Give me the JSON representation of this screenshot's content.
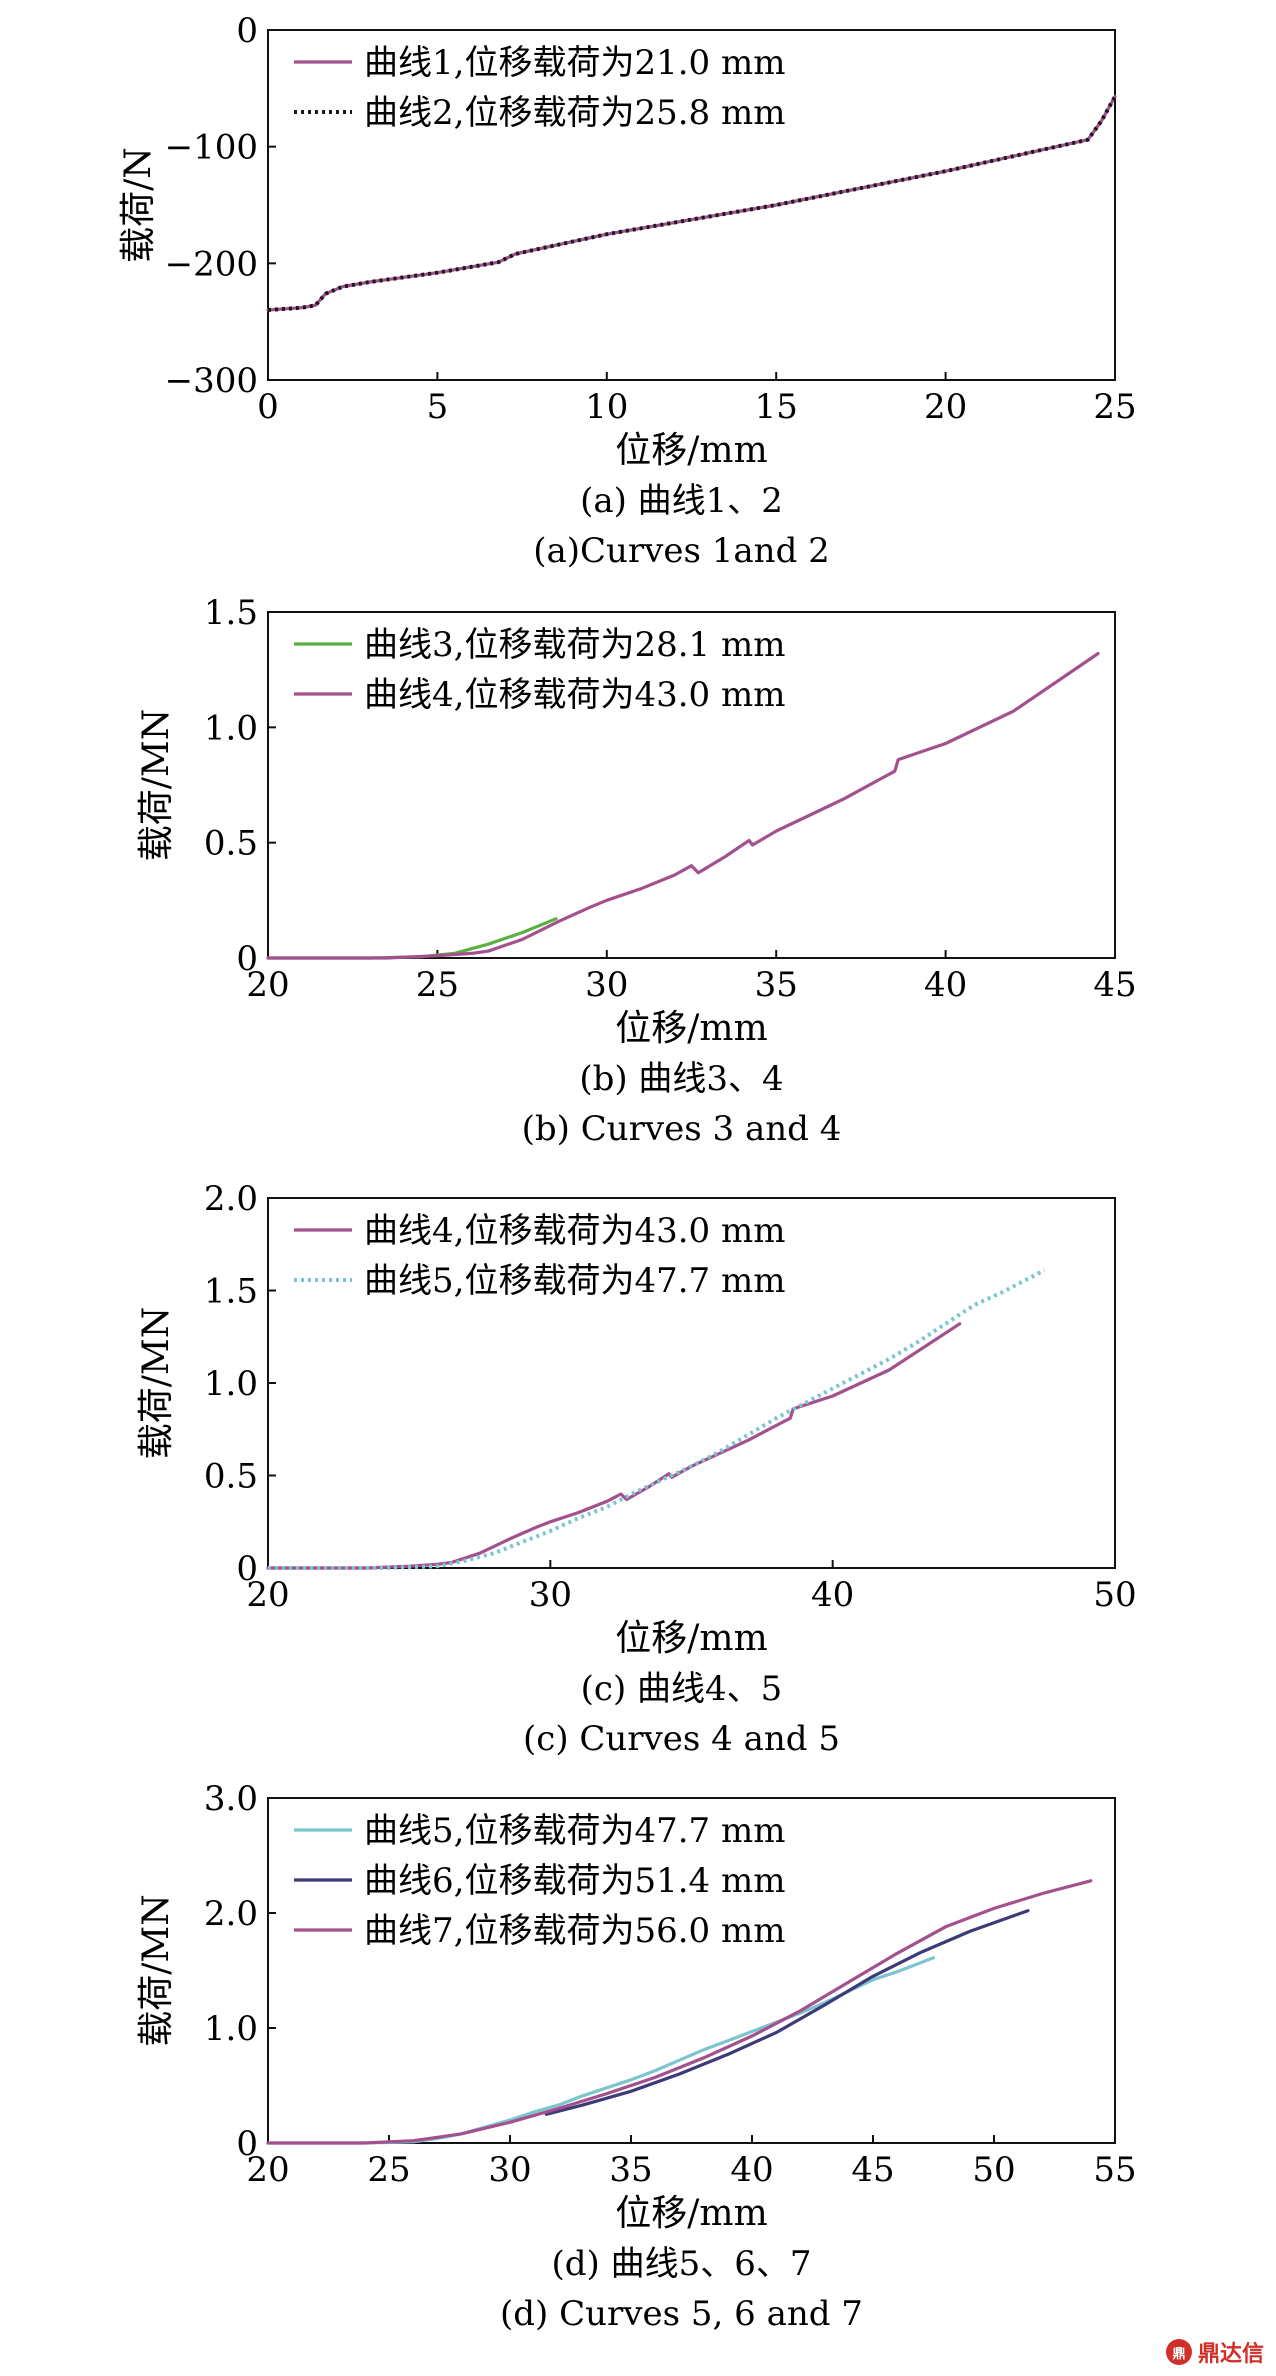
{
  "chart_data": [
    {
      "type": "line",
      "panel": "a",
      "xlabel": "位移/mm",
      "ylabel": "载荷/N",
      "xlim": [
        0,
        25
      ],
      "ylim": [
        -300,
        0
      ],
      "xticks": [
        "0",
        "5",
        "10",
        "15",
        "20",
        "25"
      ],
      "yticks": [
        "0",
        "−100",
        "−200",
        "−300"
      ],
      "caption_cn": "(a) 曲线1、2",
      "caption_en": "(a)Curves 1and 2",
      "legend_position": "top-left",
      "series": [
        {
          "name": "曲线1,位移载荷为21.0 mm",
          "color": "#a3508e",
          "style": "solid",
          "x": [
            0,
            1.0,
            1.4,
            1.7,
            2.2,
            3,
            5,
            6.8,
            7.3,
            10,
            15,
            20,
            24.2,
            24.6,
            25
          ],
          "y": [
            -240,
            -238,
            -236,
            -226,
            -220,
            -216,
            -208,
            -199,
            -192,
            -175,
            -150,
            -121,
            -94,
            -78,
            -57
          ]
        },
        {
          "name": "曲线2,位移载荷为25.8 mm",
          "color": "#1a1a1a",
          "style": "dotted",
          "x": [
            0,
            1.0,
            1.4,
            1.7,
            2.2,
            3,
            5,
            6.8,
            7.3,
            10,
            15,
            20,
            24.2,
            24.6,
            25
          ],
          "y": [
            -240,
            -238,
            -236,
            -226,
            -220,
            -216,
            -208,
            -199,
            -192,
            -175,
            -150,
            -121,
            -94,
            -78,
            -57
          ]
        }
      ]
    },
    {
      "type": "line",
      "panel": "b",
      "xlabel": "位移/mm",
      "ylabel": "载荷/MN",
      "xlim": [
        20,
        45
      ],
      "ylim": [
        0,
        1.5
      ],
      "xticks": [
        "20",
        "25",
        "30",
        "35",
        "40",
        "45"
      ],
      "yticks": [
        "0",
        "0.5",
        "1.0",
        "1.5"
      ],
      "caption_cn": "(b) 曲线3、4",
      "caption_en": "(b) Curves 3 and 4",
      "legend_position": "top-left",
      "series": [
        {
          "name": "曲线3,位移载荷为28.1 mm",
          "color": "#5ab040",
          "style": "solid",
          "x": [
            20,
            23,
            24.5,
            25.5,
            26.5,
            27.5,
            28.5
          ],
          "y": [
            0,
            0,
            0.005,
            0.02,
            0.06,
            0.11,
            0.17
          ]
        },
        {
          "name": "曲线4,位移载荷为43.0 mm",
          "color": "#a3508e",
          "style": "solid",
          "x": [
            20,
            23.5,
            25,
            26,
            26.5,
            27.5,
            28.6,
            29.5,
            30,
            31,
            32,
            32.5,
            32.7,
            33.5,
            34.2,
            34.3,
            35,
            36,
            37,
            38,
            38.5,
            38.6,
            40,
            42,
            44.5
          ],
          "y": [
            0,
            0,
            0.01,
            0.02,
            0.03,
            0.08,
            0.16,
            0.22,
            0.25,
            0.3,
            0.36,
            0.4,
            0.37,
            0.44,
            0.51,
            0.49,
            0.55,
            0.62,
            0.69,
            0.77,
            0.81,
            0.86,
            0.93,
            1.07,
            1.32
          ]
        }
      ]
    },
    {
      "type": "line",
      "panel": "c",
      "xlabel": "位移/mm",
      "ylabel": "载荷/MN",
      "xlim": [
        20,
        50
      ],
      "ylim": [
        0,
        2.0
      ],
      "xticks": [
        "20",
        "30",
        "40",
        "50"
      ],
      "yticks": [
        "0",
        "0.5",
        "1.0",
        "1.5",
        "2.0"
      ],
      "caption_cn": "(c) 曲线4、5",
      "caption_en": "(c) Curves 4 and 5",
      "legend_position": "top-left",
      "series": [
        {
          "name": "曲线4,位移载荷为43.0 mm",
          "color": "#a3508e",
          "style": "solid",
          "x": [
            20,
            23.5,
            25,
            26,
            26.5,
            27.5,
            28.6,
            29.5,
            30,
            31,
            32,
            32.5,
            32.7,
            33.5,
            34.2,
            34.3,
            35,
            36,
            37,
            38,
            38.5,
            38.6,
            40,
            42,
            44.5
          ],
          "y": [
            0,
            0,
            0.01,
            0.02,
            0.03,
            0.08,
            0.16,
            0.22,
            0.25,
            0.3,
            0.36,
            0.4,
            0.37,
            0.44,
            0.51,
            0.49,
            0.55,
            0.62,
            0.69,
            0.77,
            0.81,
            0.86,
            0.93,
            1.07,
            1.32
          ]
        },
        {
          "name": "曲线5,位移载荷为47.7 mm",
          "color": "#7cc4cf",
          "style": "dotted",
          "x": [
            20,
            24,
            26,
            27,
            28,
            29,
            30,
            31,
            32,
            33,
            34,
            35,
            36,
            37,
            38,
            39,
            40,
            41,
            42,
            43,
            44,
            45,
            46,
            47.5
          ],
          "y": [
            0,
            0,
            0.01,
            0.04,
            0.08,
            0.14,
            0.2,
            0.27,
            0.33,
            0.41,
            0.48,
            0.55,
            0.63,
            0.72,
            0.81,
            0.89,
            0.97,
            1.05,
            1.13,
            1.22,
            1.32,
            1.42,
            1.49,
            1.61
          ]
        }
      ]
    },
    {
      "type": "line",
      "panel": "d",
      "xlabel": "位移/mm",
      "ylabel": "载荷/MN",
      "xlim": [
        20,
        55
      ],
      "ylim": [
        0,
        3.0
      ],
      "xticks": [
        "20",
        "25",
        "30",
        "35",
        "40",
        "45",
        "50",
        "55"
      ],
      "yticks": [
        "0",
        "1.0",
        "2.0",
        "3.0"
      ],
      "caption_cn": "(d) 曲线5、6、7",
      "caption_en": "(d) Curves 5, 6 and 7",
      "legend_position": "top-left",
      "series": [
        {
          "name": "曲线5,位移载荷为47.7 mm",
          "color": "#7cc4cf",
          "style": "solid",
          "x": [
            20,
            24,
            26,
            27,
            28,
            29,
            30,
            31,
            32,
            33,
            34,
            35,
            36,
            37,
            38,
            39,
            40,
            41,
            42,
            43,
            44,
            45,
            46,
            47.5
          ],
          "y": [
            0,
            0,
            0.01,
            0.04,
            0.08,
            0.14,
            0.2,
            0.27,
            0.33,
            0.41,
            0.48,
            0.55,
            0.63,
            0.72,
            0.81,
            0.89,
            0.97,
            1.05,
            1.13,
            1.22,
            1.32,
            1.42,
            1.49,
            1.61
          ]
        },
        {
          "name": "曲线6,位移载荷为51.4 mm",
          "color": "#3c3a78",
          "style": "solid",
          "x": [
            31.5,
            33,
            35,
            37,
            39,
            41,
            43,
            45,
            47,
            49,
            51.4
          ],
          "y": [
            0.25,
            0.33,
            0.45,
            0.6,
            0.77,
            0.96,
            1.2,
            1.45,
            1.66,
            1.84,
            2.02
          ]
        },
        {
          "name": "曲线7,位移载荷为56.0 mm",
          "color": "#a3508e",
          "style": "solid",
          "x": [
            20,
            24,
            26,
            27,
            28,
            30,
            32,
            34,
            36,
            38,
            40,
            42,
            44,
            46,
            48,
            50,
            52,
            54
          ],
          "y": [
            0,
            0,
            0.02,
            0.05,
            0.08,
            0.18,
            0.3,
            0.43,
            0.57,
            0.74,
            0.93,
            1.15,
            1.4,
            1.65,
            1.88,
            2.04,
            2.17,
            2.28
          ]
        }
      ]
    }
  ],
  "watermark": {
    "text": "鼎达信",
    "logo": "鼎"
  }
}
